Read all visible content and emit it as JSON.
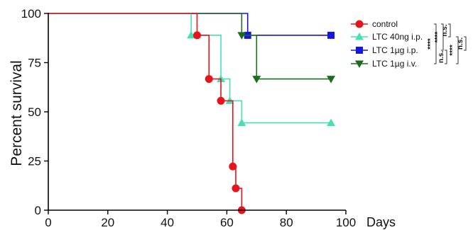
{
  "chart_data": {
    "type": "line",
    "step": true,
    "xlabel": "Days",
    "ylabel": "Percent survival",
    "xlim": [
      0,
      100
    ],
    "ylim": [
      0,
      100
    ],
    "x_ticks": [
      0,
      20,
      40,
      60,
      80,
      100
    ],
    "y_ticks": [
      0,
      25,
      50,
      75,
      100
    ],
    "grid": false,
    "legend_position": "top-right",
    "series": [
      {
        "name": "control",
        "color": "#e8141c",
        "marker": "circle",
        "x": [
          0,
          50,
          54,
          58,
          62,
          63,
          65
        ],
        "y": [
          100,
          88.9,
          66.7,
          55.6,
          22.2,
          11.1,
          0
        ]
      },
      {
        "name": "LTC 40ng i.p.",
        "color": "#47e0b5",
        "marker": "triangle-up",
        "x": [
          0,
          48,
          58,
          61,
          65,
          95
        ],
        "y": [
          100,
          88.9,
          66.7,
          55.6,
          44.4,
          44.4
        ]
      },
      {
        "name": "LTC 1µg i.p.",
        "color": "#1515e0",
        "marker": "square",
        "x": [
          0,
          67,
          95
        ],
        "y": [
          100,
          88.9,
          88.9
        ]
      },
      {
        "name": "LTC 1µg i.v.",
        "color": "#1e6b1e",
        "marker": "triangle-down",
        "x": [
          0,
          65,
          70,
          95
        ],
        "y": [
          100,
          88.9,
          66.7,
          66.7
        ]
      }
    ],
    "significance": [
      {
        "label": "****"
      },
      {
        "label": "****"
      },
      {
        "label": "n.s."
      },
      {
        "label": "n.s."
      },
      {
        "label": "****"
      },
      {
        "label": "n.s."
      }
    ]
  }
}
